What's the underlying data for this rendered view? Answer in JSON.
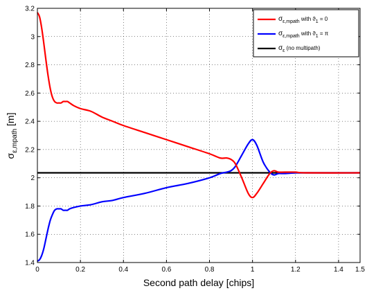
{
  "chart_data": {
    "type": "line",
    "xlabel": "Second path delay [chips]",
    "ylabel": {
      "main": "σ",
      "sub": "ε,mpath",
      "unit": " [m]"
    },
    "xlim": [
      0,
      1.5
    ],
    "ylim": [
      1.4,
      3.2
    ],
    "xticks": [
      "0",
      "0.2",
      "0.4",
      "0.6",
      "0.8",
      "1",
      "1.2",
      "1.4",
      "1.5"
    ],
    "xtick_values": [
      0,
      0.2,
      0.4,
      0.6,
      0.8,
      1.0,
      1.2,
      1.4,
      1.5
    ],
    "yticks": [
      "1.4",
      "1.6",
      "1.8",
      "2",
      "2.2",
      "2.4",
      "2.6",
      "2.8",
      "3",
      "3.2"
    ],
    "ytick_values": [
      1.4,
      1.6,
      1.8,
      2.0,
      2.2,
      2.4,
      2.6,
      2.8,
      3.0,
      3.2
    ],
    "grid": true,
    "legend_position": "top-right",
    "series": [
      {
        "name": {
          "main": "σ",
          "sub": "ε,mpath",
          "rest": " with ϑ",
          "sub2": "1",
          "rest2": " = 0"
        },
        "color": "#ff0000",
        "x": [
          0,
          0.01,
          0.02,
          0.03,
          0.04,
          0.05,
          0.06,
          0.07,
          0.08,
          0.09,
          0.1,
          0.11,
          0.12,
          0.13,
          0.14,
          0.15,
          0.17,
          0.2,
          0.25,
          0.3,
          0.35,
          0.4,
          0.5,
          0.6,
          0.7,
          0.8,
          0.85,
          0.88,
          0.9,
          0.92,
          0.95,
          0.98,
          1.0,
          1.02,
          1.05,
          1.08,
          1.1,
          1.12,
          1.15,
          1.2,
          1.25,
          1.5
        ],
        "y": [
          3.17,
          3.14,
          3.06,
          2.95,
          2.83,
          2.72,
          2.63,
          2.57,
          2.54,
          2.53,
          2.53,
          2.53,
          2.54,
          2.54,
          2.54,
          2.53,
          2.51,
          2.49,
          2.47,
          2.43,
          2.4,
          2.37,
          2.32,
          2.27,
          2.22,
          2.17,
          2.14,
          2.14,
          2.13,
          2.1,
          2.0,
          1.89,
          1.86,
          1.89,
          1.96,
          2.03,
          2.05,
          2.04,
          2.04,
          2.04,
          2.035,
          2.035
        ]
      },
      {
        "name": {
          "main": "σ",
          "sub": "ε,mpath",
          "rest": " with ϑ",
          "sub2": "1",
          "rest2": " = π"
        },
        "color": "#0000ff",
        "x": [
          0,
          0.01,
          0.02,
          0.03,
          0.04,
          0.05,
          0.06,
          0.07,
          0.08,
          0.09,
          0.1,
          0.11,
          0.12,
          0.13,
          0.14,
          0.15,
          0.17,
          0.2,
          0.25,
          0.3,
          0.35,
          0.4,
          0.5,
          0.6,
          0.7,
          0.8,
          0.85,
          0.88,
          0.9,
          0.92,
          0.95,
          0.98,
          1.0,
          1.02,
          1.05,
          1.08,
          1.1,
          1.12,
          1.15,
          1.2,
          1.25,
          1.5
        ],
        "y": [
          1.41,
          1.42,
          1.45,
          1.5,
          1.57,
          1.64,
          1.7,
          1.74,
          1.77,
          1.78,
          1.78,
          1.78,
          1.77,
          1.77,
          1.77,
          1.78,
          1.79,
          1.8,
          1.81,
          1.83,
          1.84,
          1.86,
          1.89,
          1.93,
          1.96,
          2.0,
          2.03,
          2.04,
          2.05,
          2.08,
          2.16,
          2.24,
          2.27,
          2.23,
          2.11,
          2.04,
          2.02,
          2.03,
          2.03,
          2.035,
          2.035,
          2.035
        ]
      },
      {
        "name": {
          "main": "σ",
          "sub": "ε",
          "rest": " (no multipath)",
          "sub2": "",
          "rest2": ""
        },
        "color": "#000000",
        "x": [
          0,
          1.5
        ],
        "y": [
          2.035,
          2.035
        ]
      }
    ]
  }
}
